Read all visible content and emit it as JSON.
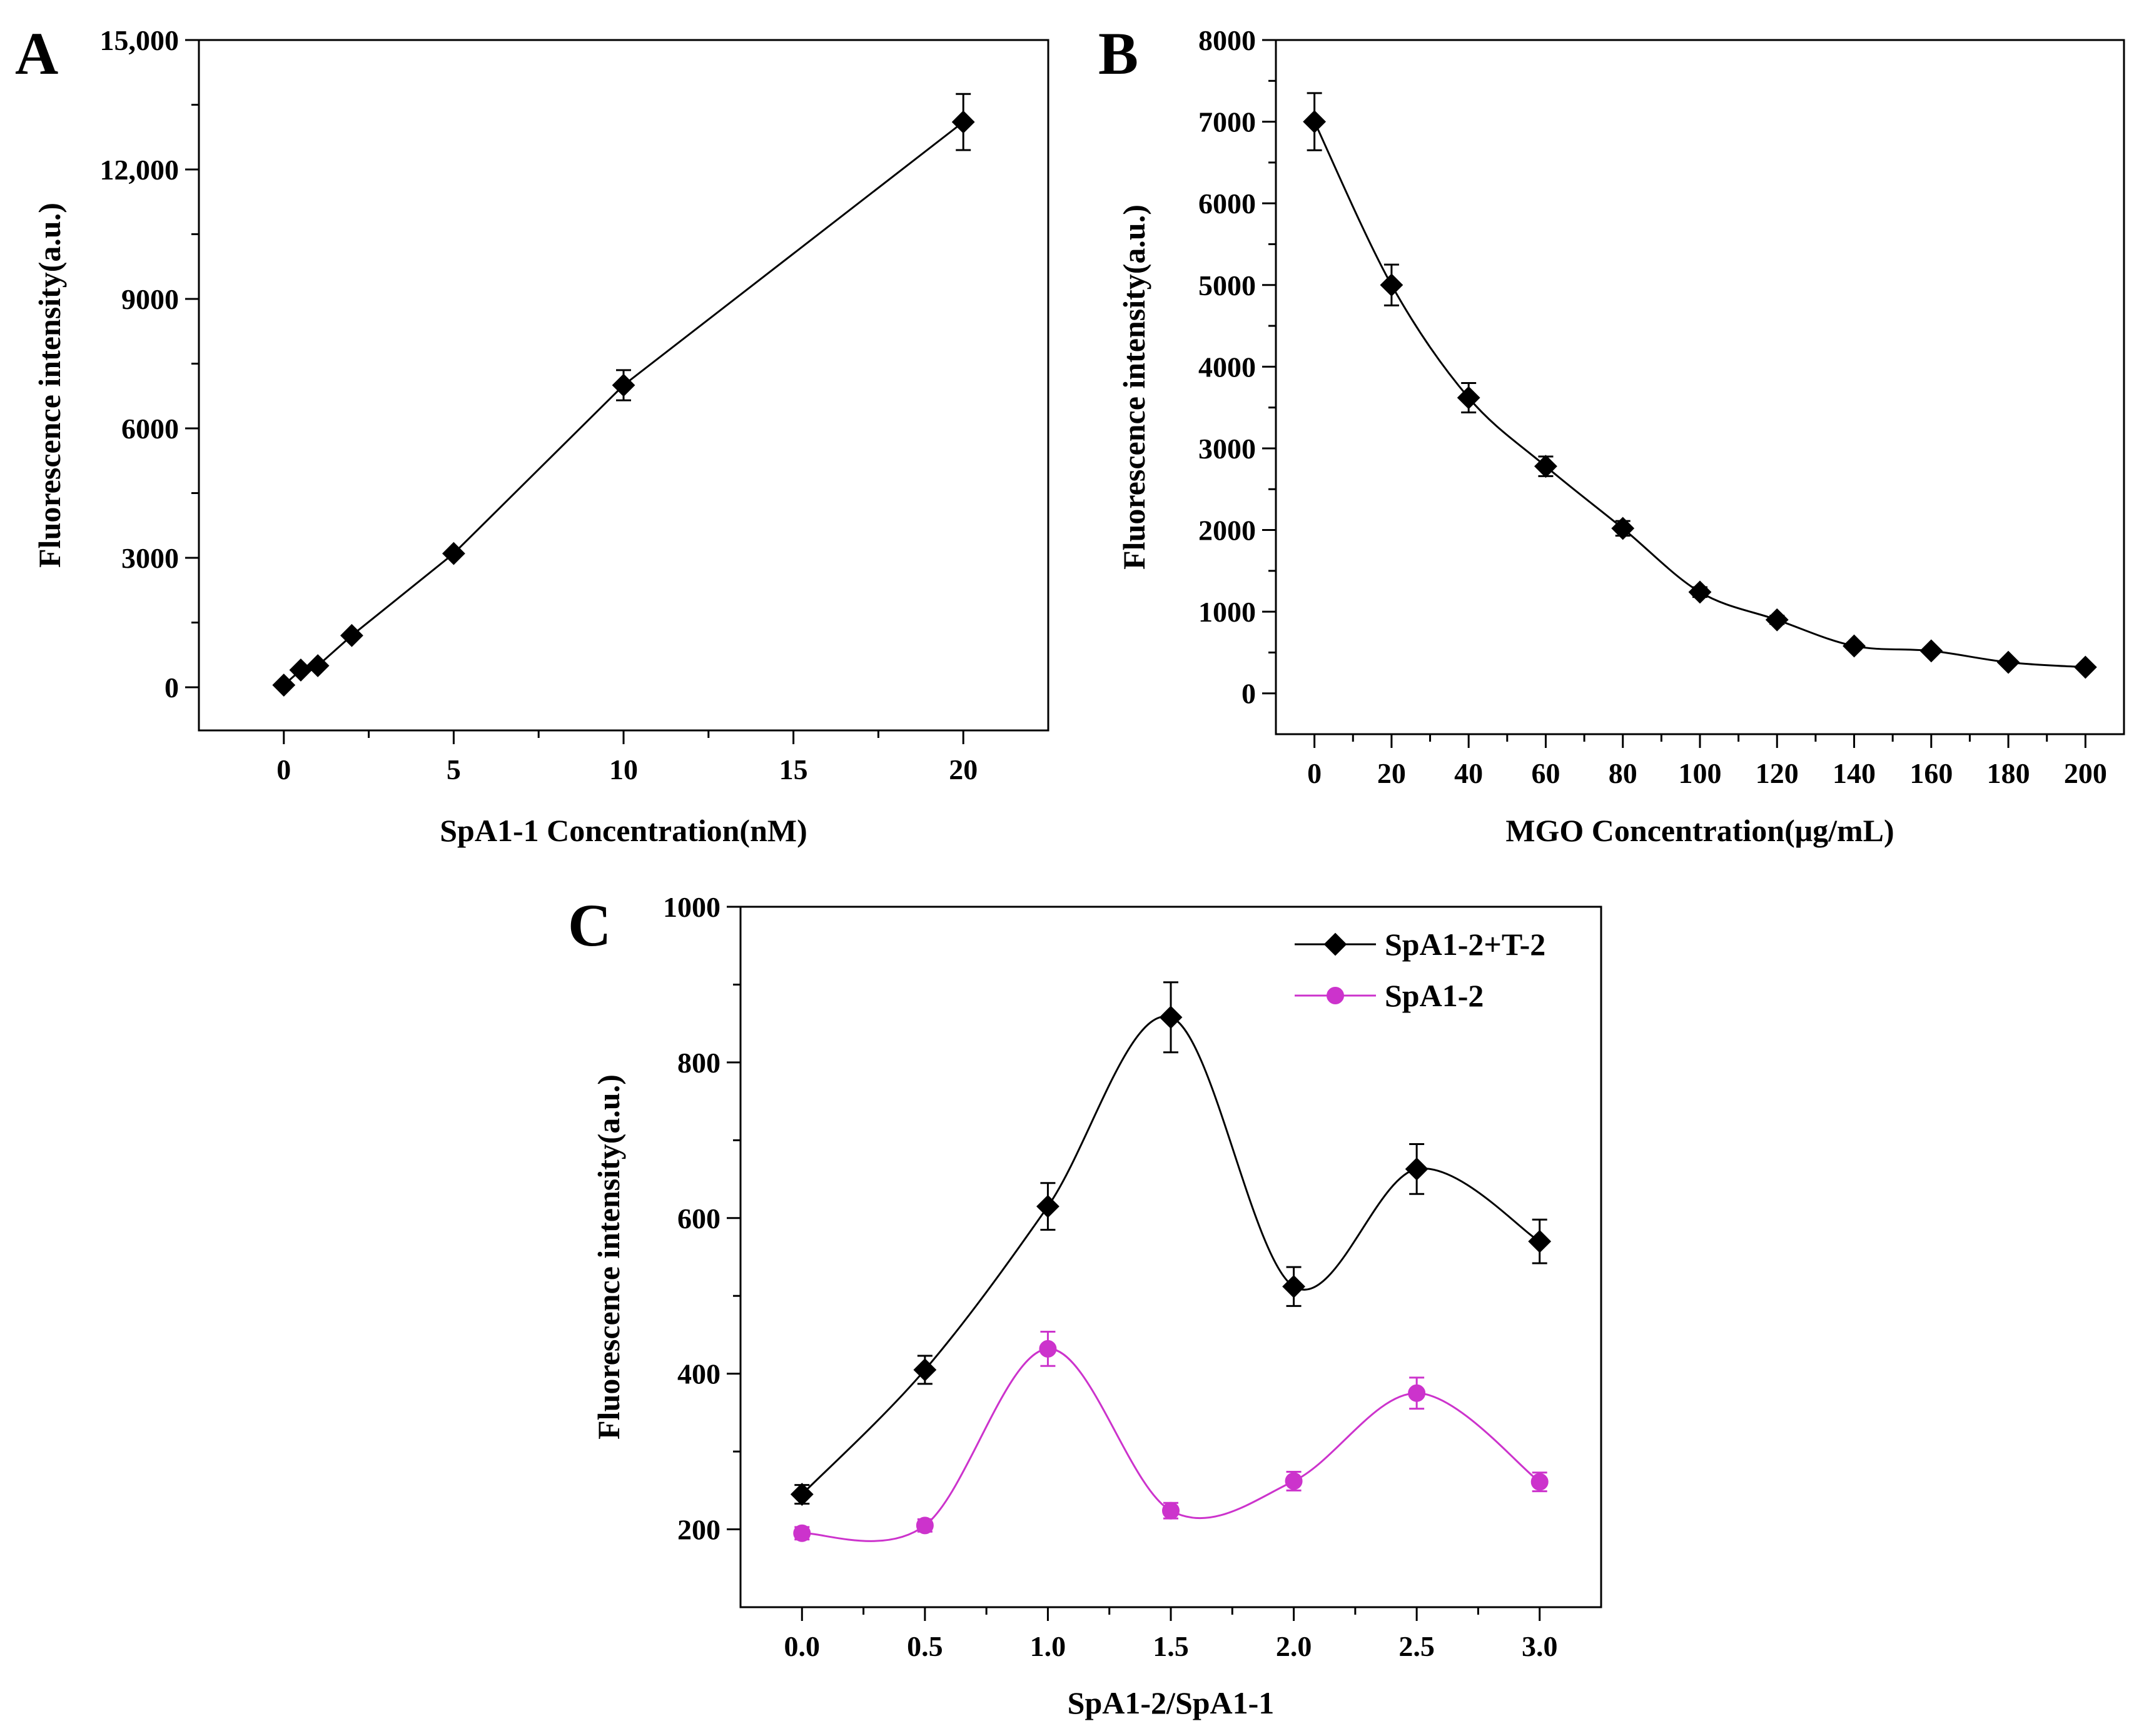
{
  "figure": {
    "background": "#ffffff",
    "axis_color": "#000000"
  },
  "chart_data": [
    {
      "id": "A",
      "panel_label": "A",
      "type": "line",
      "xlabel": "SpA1-1 Concentration(nM)",
      "ylabel": "Fluorescence intensity(a.u.)",
      "xlim": [
        -2.5,
        22.5
      ],
      "ylim": [
        -1000,
        15000
      ],
      "xticks": [
        0,
        5,
        10,
        15,
        20
      ],
      "xtick_labels": [
        "0",
        "5",
        "10",
        "15",
        "20"
      ],
      "yticks": [
        0,
        3000,
        6000,
        9000,
        12000,
        15000
      ],
      "ytick_labels": [
        "0",
        "3000",
        "6000",
        "9000",
        "12,000",
        "15,000"
      ],
      "smooth": false,
      "legend": null,
      "series": [
        {
          "name": "",
          "color": "#000000",
          "marker": "diamond",
          "x": [
            0,
            0.5,
            1,
            2,
            5,
            10,
            20
          ],
          "y": [
            50,
            400,
            500,
            1200,
            3100,
            7000,
            13100
          ],
          "err": [
            0,
            0,
            0,
            0,
            0,
            350,
            650
          ]
        }
      ]
    },
    {
      "id": "B",
      "panel_label": "B",
      "type": "line",
      "xlabel": "MGO Concentration(μg/mL)",
      "ylabel": "Fluorescence intensity(a.u.)",
      "xlim": [
        -10,
        210
      ],
      "ylim": [
        -500,
        8000
      ],
      "xticks": [
        0,
        20,
        40,
        60,
        80,
        100,
        120,
        140,
        160,
        180,
        200
      ],
      "xtick_labels": [
        "0",
        "20",
        "40",
        "60",
        "80",
        "100",
        "120",
        "140",
        "160",
        "180",
        "200"
      ],
      "yticks": [
        0,
        1000,
        2000,
        3000,
        4000,
        5000,
        6000,
        7000,
        8000
      ],
      "ytick_labels": [
        "0",
        "1000",
        "2000",
        "3000",
        "4000",
        "5000",
        "6000",
        "7000",
        "8000"
      ],
      "smooth": true,
      "legend": null,
      "series": [
        {
          "name": "",
          "color": "#000000",
          "marker": "diamond",
          "x": [
            0,
            20,
            40,
            60,
            80,
            100,
            120,
            140,
            160,
            180,
            200
          ],
          "y": [
            7000,
            5000,
            3620,
            2780,
            2020,
            1240,
            900,
            580,
            520,
            380,
            320
          ],
          "err": [
            350,
            250,
            180,
            120,
            90,
            60,
            50,
            40,
            30,
            25,
            20
          ]
        }
      ]
    },
    {
      "id": "C",
      "panel_label": "C",
      "type": "line",
      "xlabel": "SpA1-2/SpA1-1",
      "ylabel": "Fluorescence intensity(a.u.)",
      "xlim": [
        -0.25,
        3.25
      ],
      "ylim": [
        100,
        1000
      ],
      "xticks": [
        0.0,
        0.5,
        1.0,
        1.5,
        2.0,
        2.5,
        3.0
      ],
      "xtick_labels": [
        "0.0",
        "0.5",
        "1.0",
        "1.5",
        "2.0",
        "2.5",
        "3.0"
      ],
      "yticks": [
        200,
        400,
        600,
        800,
        1000
      ],
      "ytick_labels": [
        "200",
        "400",
        "600",
        "800",
        "1000"
      ],
      "smooth": true,
      "legend": "top-right",
      "series": [
        {
          "name": "SpA1-2+T-2",
          "color": "#000000",
          "marker": "diamond",
          "x": [
            0.0,
            0.5,
            1.0,
            1.5,
            2.0,
            2.5,
            3.0
          ],
          "y": [
            245,
            405,
            615,
            858,
            512,
            663,
            570
          ],
          "err": [
            12,
            18,
            30,
            45,
            25,
            32,
            28
          ]
        },
        {
          "name": "SpA1-2",
          "color": "#cc33cc",
          "marker": "circle",
          "x": [
            0.0,
            0.5,
            1.0,
            1.5,
            2.0,
            2.5,
            3.0
          ],
          "y": [
            195,
            205,
            432,
            224,
            262,
            375,
            261
          ],
          "err": [
            8,
            8,
            22,
            10,
            12,
            20,
            12
          ]
        }
      ]
    }
  ]
}
